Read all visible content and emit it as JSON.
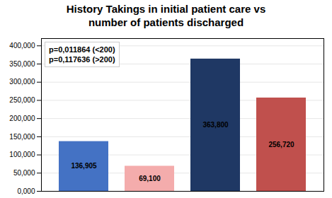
{
  "chart_data": {
    "type": "bar",
    "title": "History Takings in initial patient care vs\nnumber of patients discharged",
    "categories": [
      null,
      null,
      null,
      null
    ],
    "values": [
      136905,
      69100,
      363800,
      256720
    ],
    "value_labels": [
      "136,905",
      "69,100",
      "363,800",
      "256,720"
    ],
    "colors": [
      "#4472C4",
      "#F4ACAC",
      "#1F3864",
      "#C0504D"
    ],
    "data_labels": true,
    "annotations": [
      "p=0,011864 (<200)\np=0,117636 (>200)"
    ],
    "ylim": [
      0,
      420000
    ],
    "yticks": [
      {
        "value": 0,
        "label": "0,000"
      },
      {
        "value": 50000,
        "label": "50,000"
      },
      {
        "value": 100000,
        "label": "100,000"
      },
      {
        "value": 150000,
        "label": "150,000"
      },
      {
        "value": 200000,
        "label": "200,000"
      },
      {
        "value": 250000,
        "label": "250,000"
      },
      {
        "value": 300000,
        "label": "300,000"
      },
      {
        "value": 350000,
        "label": "350,000"
      },
      {
        "value": 400000,
        "label": "400,000"
      }
    ],
    "grid": true,
    "tick_labels": "y"
  }
}
